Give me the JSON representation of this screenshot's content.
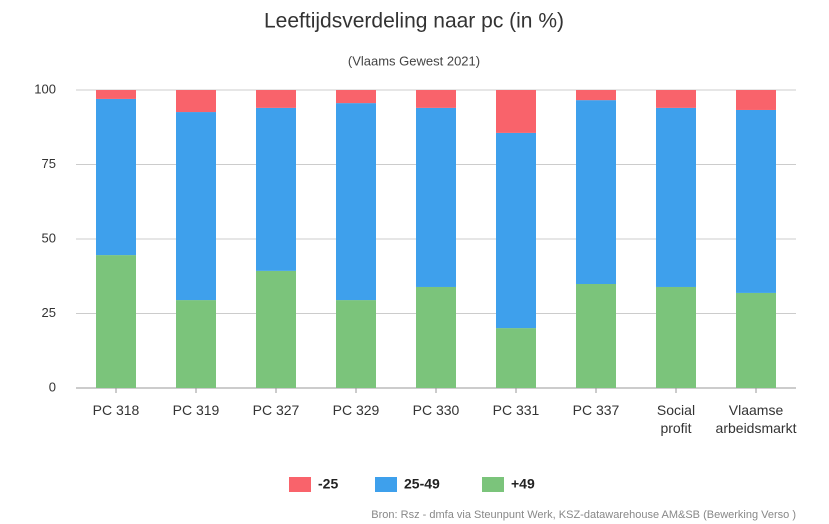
{
  "chart_data": {
    "type": "stacked_bar",
    "title": "Leeftijdsverdeling naar pc (in %)",
    "subtitle": "(Vlaams Gewest 2021)",
    "source": "Bron: Rsz - dmfa via Steunpunt Werk, KSZ-datawarehouse AM&SB (Bewerking Verso )",
    "categories": [
      "PC 318",
      "PC 319",
      "PC 327",
      "PC 329",
      "PC 330",
      "PC 331",
      "PC 337",
      "Social profit",
      "Vlaamse arbeidsmarkt"
    ],
    "series": [
      {
        "name": "-25",
        "color": "#f9636b",
        "values": [
          3.0,
          7.4,
          6.0,
          4.4,
          6.0,
          14.4,
          3.4,
          6.0,
          6.7
        ]
      },
      {
        "name": "25-49",
        "color": "#3ea0ec",
        "values": [
          52.4,
          63.1,
          54.7,
          66.1,
          60.1,
          65.5,
          61.7,
          60.1,
          61.4
        ]
      },
      {
        "name": "+49",
        "color": "#7bc47b",
        "values": [
          44.6,
          29.5,
          39.3,
          29.5,
          33.9,
          20.1,
          34.9,
          33.9,
          31.9
        ]
      }
    ],
    "ylim": [
      0,
      100
    ],
    "yticks": [
      0,
      25,
      50,
      75,
      100
    ],
    "grid": true,
    "legend": "bottom"
  }
}
